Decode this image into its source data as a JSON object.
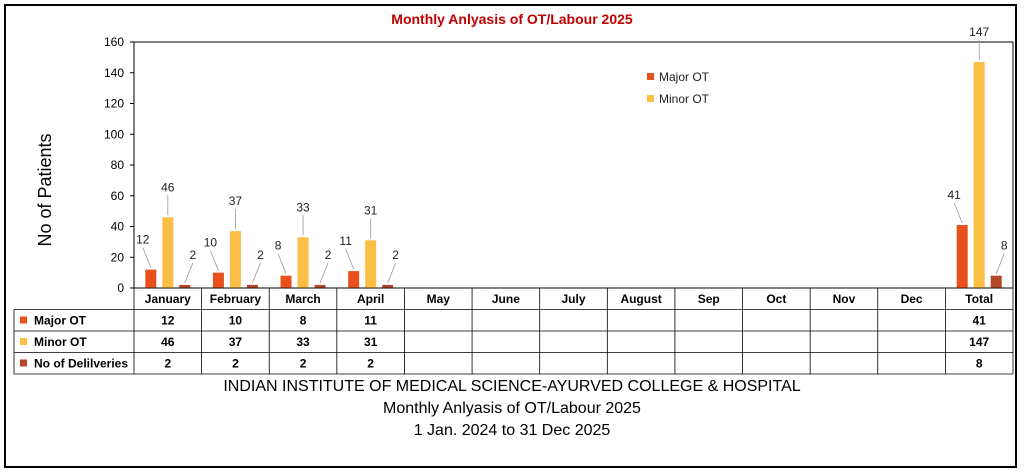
{
  "chart_data": {
    "type": "bar",
    "title": "Monthly Anlyasis of OT/Labour 2025",
    "ylabel": "No of Patients",
    "xlabel": "",
    "ylim": [
      0,
      160
    ],
    "yticks": [
      0,
      20,
      40,
      60,
      80,
      100,
      120,
      140,
      160
    ],
    "categories": [
      "January",
      "February",
      "March",
      "April",
      "May",
      "June",
      "July",
      "August",
      "Sep",
      "Oct",
      "Nov",
      "Dec",
      "Total"
    ],
    "series": [
      {
        "name": "Major OT",
        "color": "#e8511c",
        "values": [
          12,
          10,
          8,
          11,
          null,
          null,
          null,
          null,
          null,
          null,
          null,
          null,
          41
        ]
      },
      {
        "name": "Minor OT",
        "color": "#fbbf45",
        "values": [
          46,
          37,
          33,
          31,
          null,
          null,
          null,
          null,
          null,
          null,
          null,
          null,
          147
        ]
      },
      {
        "name": "No of Delilveries",
        "color": "#b5472a",
        "values": [
          2,
          2,
          2,
          2,
          null,
          null,
          null,
          null,
          null,
          null,
          null,
          null,
          8
        ]
      }
    ],
    "legend": {
      "placement": "top-right",
      "entries": [
        "Major OT",
        "Minor OT"
      ]
    },
    "grid": false,
    "data_table": true
  },
  "footer": {
    "line1": "INDIAN INSTITUTE OF MEDICAL SCIENCE-AYURVED COLLEGE & HOSPITAL",
    "line2": "Monthly Anlyasis of OT/Labour 2025",
    "line3": "1 Jan. 2024 to 31 Dec 2025"
  }
}
